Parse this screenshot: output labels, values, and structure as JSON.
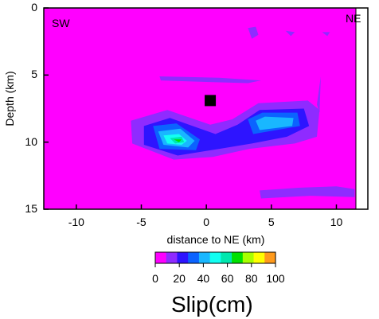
{
  "chart_data": {
    "type": "heatmap",
    "corner_labels": {
      "left": "SW",
      "right": "NE"
    },
    "xlabel": "distance to NE (km)",
    "ylabel": "Depth (km)",
    "xticks": [
      -10,
      -5,
      0,
      5,
      10
    ],
    "yticks": [
      0,
      5,
      10,
      15
    ],
    "xlim": [
      -12.5,
      11.5
    ],
    "ylim": [
      0,
      15
    ],
    "hypocenter": {
      "x": 0.3,
      "y": 6.9
    },
    "colorbar": {
      "label": "Slip(cm)",
      "ticks": [
        0,
        20,
        40,
        60,
        80,
        100
      ],
      "colors": [
        "#ff00ff",
        "#8f2bff",
        "#2e14ff",
        "#0b63ff",
        "#19b7ff",
        "#12fff2",
        "#00e7ae",
        "#00e100",
        "#a8ff00",
        "#ffff00",
        "#ff9a1c"
      ]
    },
    "slip_patches": [
      {
        "slip_cm": 15,
        "points": [
          [
            -5.8,
            8.4
          ],
          [
            -3,
            7.6
          ],
          [
            0.3,
            8.7
          ],
          [
            2,
            8.3
          ],
          [
            4,
            7.1
          ],
          [
            7.8,
            6.9
          ],
          [
            8.7,
            7.6
          ],
          [
            8.5,
            9.6
          ],
          [
            6.8,
            10.1
          ],
          [
            3.3,
            10.5
          ],
          [
            0.5,
            11.1
          ],
          [
            -2.5,
            11.3
          ],
          [
            -5.7,
            10.1
          ]
        ]
      },
      {
        "slip_cm": 20,
        "points": [
          [
            -4.8,
            8.8
          ],
          [
            -2.8,
            8.2
          ],
          [
            0.7,
            9.4
          ],
          [
            2.4,
            8.7
          ],
          [
            4.1,
            7.6
          ],
          [
            7.5,
            7.5
          ],
          [
            7.9,
            8.8
          ],
          [
            6.2,
            9.6
          ],
          [
            3.5,
            10.1
          ],
          [
            1,
            10.5
          ],
          [
            -2.2,
            11
          ],
          [
            -4.8,
            10.2
          ]
        ]
      },
      {
        "slip_cm": 30,
        "points": [
          [
            -4.1,
            8.8
          ],
          [
            -2.3,
            8.6
          ],
          [
            -0.5,
            9.8
          ],
          [
            -0.8,
            10.6
          ],
          [
            -3.6,
            10.5
          ]
        ]
      },
      {
        "slip_cm": 30,
        "points": [
          [
            3.2,
            8.3
          ],
          [
            4.3,
            7.8
          ],
          [
            7,
            7.8
          ],
          [
            7.2,
            8.8
          ],
          [
            3.6,
            9.4
          ]
        ]
      },
      {
        "slip_cm": 40,
        "points": [
          [
            -3.7,
            9.2
          ],
          [
            -2,
            9
          ],
          [
            -0.9,
            9.9
          ],
          [
            -1.4,
            10.4
          ],
          [
            -3.3,
            10.2
          ]
        ]
      },
      {
        "slip_cm": 45,
        "points": [
          [
            3.8,
            8.4
          ],
          [
            4.5,
            8.1
          ],
          [
            6.7,
            8.2
          ],
          [
            6.6,
            8.8
          ],
          [
            4.1,
            9.1
          ]
        ]
      },
      {
        "slip_cm": 50,
        "points": [
          [
            -3.3,
            9.5
          ],
          [
            -2.1,
            9.4
          ],
          [
            -1.5,
            9.9
          ],
          [
            -1.9,
            10.2
          ],
          [
            -3,
            10.1
          ]
        ]
      },
      {
        "slip_cm": 55,
        "points": [
          [
            -2.8,
            9.7
          ],
          [
            -1.9,
            9.6
          ],
          [
            -1.7,
            10
          ],
          [
            -2.4,
            10.1
          ]
        ]
      },
      {
        "slip_cm": 65,
        "points": [
          [
            -2.5,
            9.8
          ],
          [
            -1.9,
            9.8
          ],
          [
            -2.1,
            10
          ]
        ]
      },
      {
        "slip_cm": 15,
        "points": [
          [
            -3.6,
            5.1
          ],
          [
            1,
            5.2
          ],
          [
            4.2,
            5.4
          ],
          [
            3.2,
            5.6
          ],
          [
            -0.5,
            5.5
          ],
          [
            -3.5,
            5.4
          ]
        ]
      },
      {
        "slip_cm": 15,
        "points": [
          [
            3.2,
            1.5
          ],
          [
            3.8,
            1.4
          ],
          [
            4,
            2
          ],
          [
            3.5,
            2.3
          ]
        ]
      },
      {
        "slip_cm": 15,
        "points": [
          [
            6.1,
            1.7
          ],
          [
            6.8,
            1.8
          ],
          [
            6.5,
            2.1
          ]
        ]
      },
      {
        "slip_cm": 15,
        "points": [
          [
            8.9,
            1.8
          ],
          [
            9.5,
            1.8
          ],
          [
            9.3,
            2.1
          ]
        ]
      },
      {
        "slip_cm": 15,
        "points": [
          [
            4.1,
            13.6
          ],
          [
            7.1,
            13.4
          ],
          [
            10,
            13.3
          ],
          [
            11.4,
            13.5
          ],
          [
            11.4,
            14.1
          ],
          [
            8,
            14
          ],
          [
            4.2,
            14.2
          ]
        ]
      },
      {
        "slip_cm": 15,
        "points": [
          [
            8.5,
            7.2
          ],
          [
            8.8,
            5.1
          ],
          [
            8.7,
            7.8
          ]
        ]
      }
    ]
  }
}
